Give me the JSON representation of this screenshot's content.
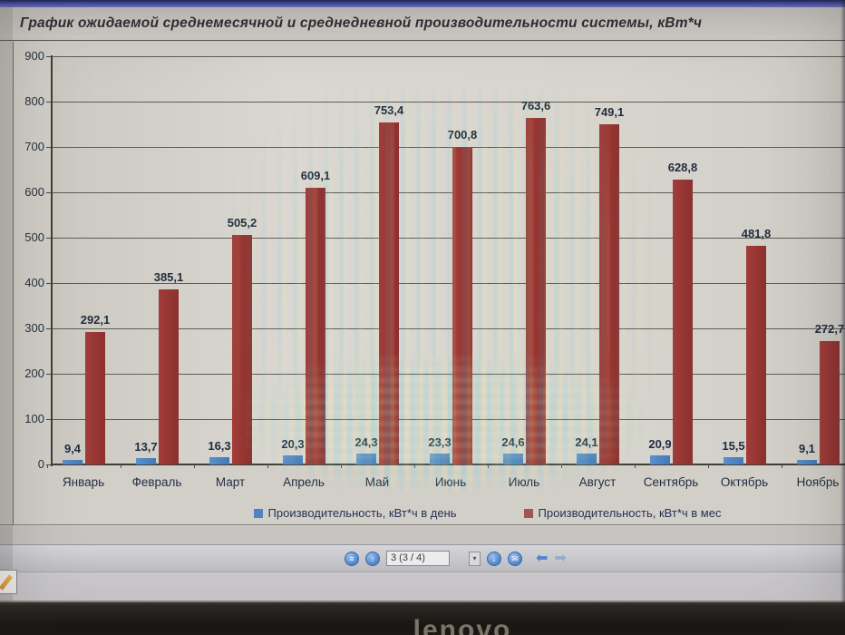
{
  "header": {
    "title": "График ожидаемой среднемесячной и среднедневной производительности системы, кВт*ч"
  },
  "chart_data": {
    "type": "bar",
    "title": "График ожидаемой среднемесячной и среднедневной производительности системы, кВт*ч",
    "categories": [
      "Январь",
      "Февраль",
      "Март",
      "Апрель",
      "Май",
      "Июнь",
      "Июль",
      "Август",
      "Сентябрь",
      "Октябрь",
      "Ноябрь"
    ],
    "series": [
      {
        "name": "Производительность, кВт*ч в день",
        "color": "#4c83c3",
        "values": [
          9.4,
          13.7,
          16.3,
          20.3,
          24.3,
          23.3,
          24.6,
          24.1,
          20.9,
          15.5,
          9.1
        ],
        "labels": [
          "9,4",
          "13,7",
          "16,3",
          "20,3",
          "24,3",
          "23,3",
          "24,6",
          "24,1",
          "20,9",
          "15,5",
          "9,1"
        ]
      },
      {
        "name": "Производительность, кВт*ч в мес",
        "color": "#983634",
        "values": [
          292.1,
          385.1,
          505.2,
          609.1,
          753.4,
          700.8,
          763.6,
          749.1,
          628.8,
          481.8,
          272.7
        ],
        "labels": [
          "292,1",
          "385,1",
          "505,2",
          "609,1",
          "753,4",
          "700,8",
          "763,6",
          "749,1",
          "628,8",
          "481,8",
          "272,7"
        ]
      }
    ],
    "ylim": [
      0,
      900
    ],
    "yticks": [
      0,
      100,
      200,
      300,
      400,
      500,
      600,
      700,
      800,
      900
    ],
    "xlabel": "",
    "ylabel": "",
    "grid": "horizontal",
    "legend_position": "bottom"
  },
  "toolbar": {
    "page_indicator": "3 (3 / 4)",
    "icons": [
      {
        "name": "pages-icon",
        "kind": "circle",
        "glyph": "≡",
        "enabled": true
      },
      {
        "name": "page-up-icon",
        "kind": "circle",
        "glyph": "↑",
        "enabled": true
      },
      {
        "name": "page-number-field",
        "kind": "field",
        "glyph": "",
        "enabled": true
      },
      {
        "name": "page-options-dropdown",
        "kind": "dropdown",
        "glyph": "▾",
        "enabled": true
      },
      {
        "name": "page-down-icon",
        "kind": "circle",
        "glyph": "↓",
        "enabled": true
      },
      {
        "name": "email-icon",
        "kind": "circle",
        "glyph": "✉",
        "enabled": true
      },
      {
        "name": "previous-view-icon",
        "kind": "arrow",
        "glyph": "⬅",
        "enabled": true
      },
      {
        "name": "next-view-icon",
        "kind": "arrow",
        "glyph": "➡",
        "enabled": false
      }
    ]
  },
  "device": {
    "brand_logo": "lenovo"
  },
  "colors": {
    "series_day": "#4c83c3",
    "series_month": "#983634",
    "chart_text": "#22304a",
    "grid": "#5e5c55",
    "axis": "#3f3d37",
    "titlebar": "#4b55ab"
  }
}
